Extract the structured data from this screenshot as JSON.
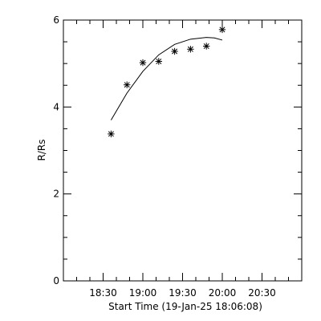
{
  "chart_data": {
    "type": "scatter",
    "title": "",
    "xlabel": "Start Time (19-Jan-25 18:06:08)",
    "ylabel": "R/Rs",
    "x_tick_labels": [
      "18:30",
      "19:00",
      "19:30",
      "20:00",
      "20:30"
    ],
    "x_tick_values_min_since_1800": [
      30,
      60,
      90,
      120,
      150
    ],
    "y_tick_labels": [
      "0",
      "2",
      "4",
      "6"
    ],
    "y_tick_values": [
      0,
      2,
      4,
      6
    ],
    "xlim_min_since_1800": [
      0,
      180
    ],
    "ylim": [
      0,
      6
    ],
    "grid": false,
    "series": [
      {
        "type": "scatter",
        "marker": "asterisk",
        "x_min_since_1800": [
          36,
          48,
          60,
          72,
          84,
          96,
          108,
          120
        ],
        "y": [
          3.38,
          4.51,
          5.02,
          5.05,
          5.28,
          5.33,
          5.4,
          5.78
        ]
      },
      {
        "type": "line",
        "x_min_since_1800": [
          36,
          48,
          60,
          72,
          84,
          96,
          108,
          114,
          120
        ],
        "y": [
          3.7,
          4.32,
          4.82,
          5.2,
          5.44,
          5.56,
          5.6,
          5.59,
          5.54
        ]
      }
    ],
    "colors": {
      "foreground": "#000000",
      "background": "#ffffff"
    }
  }
}
